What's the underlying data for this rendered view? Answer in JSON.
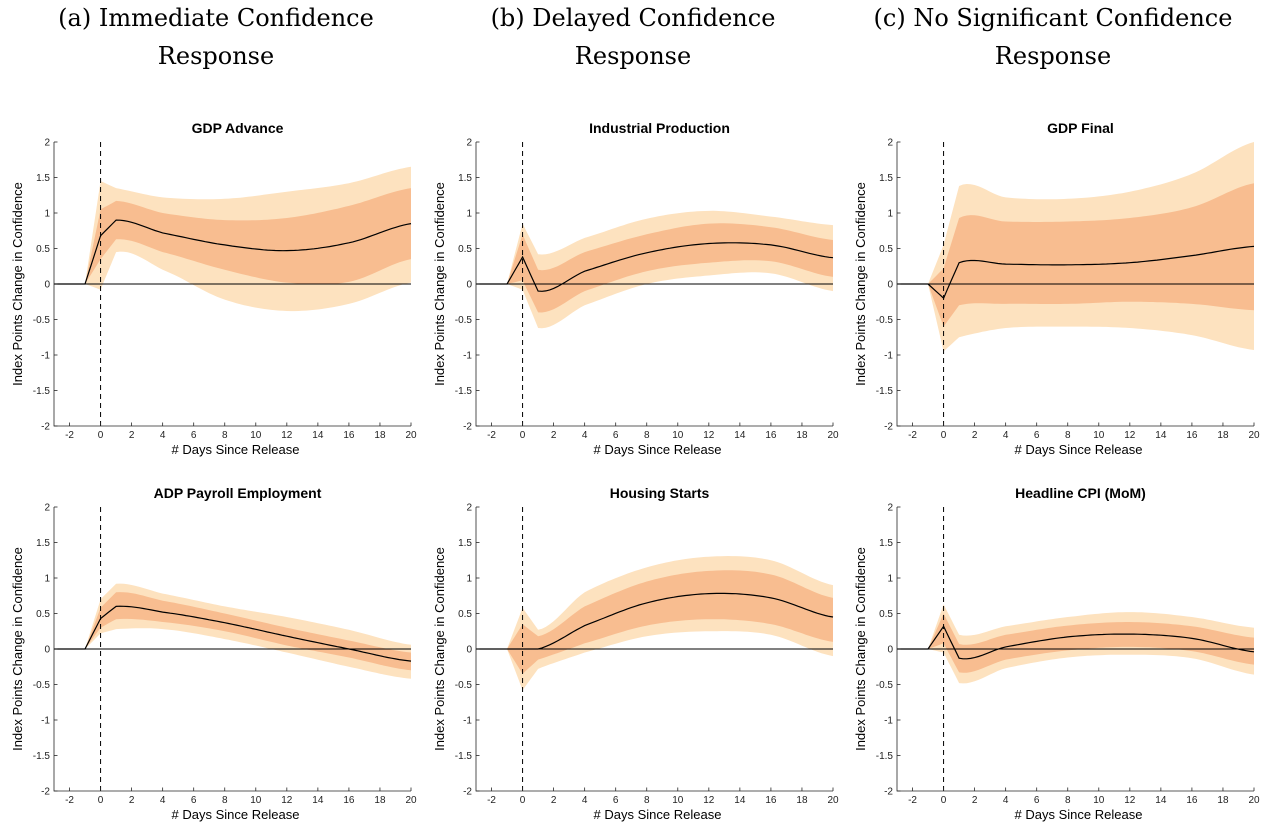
{
  "columns": [
    {
      "line1": "(a) Immediate Confidence",
      "line2": "Response"
    },
    {
      "line1": "(b) Delayed Confidence",
      "line2": "Response"
    },
    {
      "line1": "(c) No Significant Confidence",
      "line2": "Response"
    }
  ],
  "colors": {
    "outer_band": "#fde2bf",
    "inner_band": "#f8bd90",
    "line": "#000000"
  },
  "chart_data": [
    {
      "type": "line",
      "title": "GDP Advance",
      "xlabel": "# Days Since Release",
      "ylabel": "Index Points Change in Confidence",
      "xlim": [
        -3,
        20
      ],
      "ylim": [
        -2,
        2
      ],
      "xticks": [
        -2,
        0,
        2,
        4,
        6,
        8,
        10,
        12,
        14,
        16,
        18,
        20
      ],
      "xtick_labels": [
        "-2",
        "0",
        "2",
        "4",
        "6",
        "8",
        "10",
        "12",
        "14",
        "16",
        "18",
        "20"
      ],
      "yticks": [
        -2,
        -1.5,
        -1,
        -0.5,
        0,
        0.5,
        1,
        1.5,
        2
      ],
      "ytick_labels": [
        "-2",
        "-1.5",
        "-1",
        "-0.5",
        "0",
        "0.5",
        "1",
        "1.5",
        "2"
      ],
      "release_day": 0,
      "x": [
        -3,
        -1,
        0,
        1,
        4,
        8,
        12,
        16,
        20
      ],
      "series": [
        {
          "values": [
            0,
            0,
            0.68,
            0.9,
            0.72,
            0.55,
            0.47,
            0.58,
            0.85
          ]
        }
      ],
      "inner_band": {
        "lower": [
          0,
          0,
          0.35,
          0.63,
          0.45,
          0.2,
          0.02,
          0.03,
          0.35
        ],
        "upper": [
          0,
          0,
          1.05,
          1.17,
          1.0,
          0.9,
          0.93,
          1.1,
          1.35
        ]
      },
      "outer_band": {
        "lower": [
          0,
          0,
          -0.08,
          0.45,
          0.2,
          -0.22,
          -0.38,
          -0.28,
          0.02
        ],
        "upper": [
          0,
          0,
          1.45,
          1.35,
          1.22,
          1.2,
          1.3,
          1.42,
          1.65
        ]
      }
    },
    {
      "type": "line",
      "title": "Industrial Production",
      "xlabel": "# Days Since Release",
      "ylabel": "Index Points Change in Confidence",
      "xlim": [
        -3,
        20
      ],
      "ylim": [
        -2,
        2
      ],
      "xticks": [
        -2,
        0,
        2,
        4,
        6,
        8,
        10,
        12,
        14,
        16,
        18,
        20
      ],
      "xtick_labels": [
        "-2",
        "0",
        "2",
        "4",
        "6",
        "8",
        "10",
        "12",
        "14",
        "16",
        "18",
        "20"
      ],
      "yticks": [
        -2,
        -1.5,
        -1,
        -0.5,
        0,
        0.5,
        1,
        1.5,
        2
      ],
      "ytick_labels": [
        "-2",
        "-1.5",
        "-1",
        "-0.5",
        "0",
        "0.5",
        "1",
        "1.5",
        "2"
      ],
      "release_day": 0,
      "x": [
        -3,
        -1,
        0,
        1,
        4,
        8,
        12,
        16,
        20
      ],
      "series": [
        {
          "values": [
            0,
            0,
            0.38,
            -0.1,
            0.18,
            0.44,
            0.57,
            0.55,
            0.37
          ]
        }
      ],
      "inner_band": {
        "lower": [
          0,
          0,
          0.05,
          -0.4,
          -0.1,
          0.18,
          0.3,
          0.32,
          0.1
        ],
        "upper": [
          0,
          0,
          0.7,
          0.2,
          0.45,
          0.7,
          0.85,
          0.8,
          0.62
        ]
      },
      "outer_band": {
        "lower": [
          0,
          0,
          -0.08,
          -0.62,
          -0.3,
          0.0,
          0.12,
          0.15,
          -0.1
        ],
        "upper": [
          0,
          0,
          0.85,
          0.42,
          0.65,
          0.92,
          1.03,
          0.95,
          0.83
        ]
      }
    },
    {
      "type": "line",
      "title": "GDP Final",
      "xlabel": "# Days Since Release",
      "ylabel": "Index Points Change in Confidence",
      "xlim": [
        -3,
        20
      ],
      "ylim": [
        -2,
        2
      ],
      "xticks": [
        -2,
        0,
        2,
        4,
        6,
        8,
        10,
        12,
        14,
        16,
        18,
        20
      ],
      "xtick_labels": [
        "-2",
        "0",
        "2",
        "4",
        "6",
        "8",
        "10",
        "12",
        "14",
        "16",
        "18",
        "20"
      ],
      "yticks": [
        -2,
        -1.5,
        -1,
        -0.5,
        0,
        0.5,
        1,
        1.5,
        2
      ],
      "ytick_labels": [
        "-2",
        "-1.5",
        "-1",
        "-0.5",
        "0",
        "0.5",
        "1",
        "1.5",
        "2"
      ],
      "release_day": 0,
      "x": [
        -3,
        -1,
        0,
        1,
        4,
        8,
        12,
        16,
        20
      ],
      "series": [
        {
          "values": [
            0,
            0,
            -0.2,
            0.3,
            0.28,
            0.27,
            0.3,
            0.4,
            0.53
          ]
        }
      ],
      "inner_band": {
        "lower": [
          0,
          0,
          -0.6,
          -0.3,
          -0.28,
          -0.28,
          -0.25,
          -0.28,
          -0.37
        ],
        "upper": [
          0,
          0,
          0.22,
          0.93,
          0.88,
          0.88,
          0.93,
          1.08,
          1.42
        ]
      },
      "outer_band": {
        "lower": [
          0,
          0,
          -0.95,
          -0.75,
          -0.62,
          -0.6,
          -0.62,
          -0.72,
          -0.93
        ],
        "upper": [
          0,
          0,
          0.55,
          1.38,
          1.22,
          1.2,
          1.3,
          1.55,
          2.0
        ]
      }
    },
    {
      "type": "line",
      "title": "ADP Payroll Employment",
      "xlabel": "# Days Since Release",
      "ylabel": "Index Points Change in Confidence",
      "xlim": [
        -3,
        20
      ],
      "ylim": [
        -2,
        2
      ],
      "xticks": [
        -2,
        0,
        2,
        4,
        6,
        8,
        10,
        12,
        14,
        16,
        18,
        20
      ],
      "xtick_labels": [
        "-2",
        "0",
        "2",
        "4",
        "6",
        "8",
        "10",
        "12",
        "14",
        "16",
        "18",
        "20"
      ],
      "yticks": [
        -2,
        -1.5,
        -1,
        -0.5,
        0,
        0.5,
        1,
        1.5,
        2
      ],
      "ytick_labels": [
        "-2",
        "-1.5",
        "-1",
        "-0.5",
        "0",
        "0.5",
        "1",
        "1.5",
        "2"
      ],
      "release_day": 0,
      "x": [
        -3,
        -1,
        0,
        1,
        4,
        8,
        12,
        16,
        20
      ],
      "series": [
        {
          "values": [
            0,
            0,
            0.43,
            0.6,
            0.52,
            0.37,
            0.18,
            0.0,
            -0.17
          ]
        }
      ],
      "inner_band": {
        "lower": [
          0,
          0,
          0.3,
          0.42,
          0.38,
          0.25,
          0.05,
          -0.12,
          -0.3
        ],
        "upper": [
          0,
          0,
          0.58,
          0.8,
          0.68,
          0.5,
          0.3,
          0.12,
          -0.05
        ]
      },
      "outer_band": {
        "lower": [
          0,
          0,
          0.22,
          0.28,
          0.28,
          0.14,
          -0.05,
          -0.25,
          -0.42
        ],
        "upper": [
          0,
          0,
          0.7,
          0.92,
          0.78,
          0.6,
          0.45,
          0.27,
          0.06
        ]
      }
    },
    {
      "type": "line",
      "title": "Housing Starts",
      "xlabel": "# Days Since Release",
      "ylabel": "Index Points Change in Confidence",
      "xlim": [
        -3,
        20
      ],
      "ylim": [
        -2,
        2
      ],
      "xticks": [
        -2,
        0,
        2,
        4,
        6,
        8,
        10,
        12,
        14,
        16,
        18,
        20
      ],
      "xtick_labels": [
        "-2",
        "0",
        "2",
        "4",
        "6",
        "8",
        "10",
        "12",
        "14",
        "16",
        "18",
        "20"
      ],
      "yticks": [
        -2,
        -1.5,
        -1,
        -0.5,
        0,
        0.5,
        1,
        1.5,
        2
      ],
      "ytick_labels": [
        "-2",
        "-1.5",
        "-1",
        "-0.5",
        "0",
        "0.5",
        "1",
        "1.5",
        "2"
      ],
      "release_day": 0,
      "x": [
        -3,
        -1,
        0,
        1,
        4,
        8,
        12,
        16,
        20
      ],
      "series": [
        {
          "values": [
            0,
            0,
            0.0,
            0.0,
            0.33,
            0.65,
            0.78,
            0.72,
            0.45
          ]
        }
      ],
      "inner_band": {
        "lower": [
          0,
          0,
          -0.35,
          -0.15,
          0.08,
          0.33,
          0.42,
          0.35,
          0.1
        ],
        "upper": [
          0,
          0,
          0.35,
          0.18,
          0.6,
          0.95,
          1.1,
          1.05,
          0.72
        ]
      },
      "outer_band": {
        "lower": [
          0,
          0,
          -0.58,
          -0.28,
          -0.05,
          0.18,
          0.25,
          0.2,
          -0.1
        ],
        "upper": [
          0,
          0,
          0.58,
          0.27,
          0.8,
          1.15,
          1.3,
          1.25,
          0.9
        ]
      }
    },
    {
      "type": "line",
      "title": "Headline CPI (MoM)",
      "xlabel": "# Days Since Release",
      "ylabel": "Index Points Change in Confidence",
      "xlim": [
        -3,
        20
      ],
      "ylim": [
        -2,
        2
      ],
      "xticks": [
        -2,
        0,
        2,
        4,
        6,
        8,
        10,
        12,
        14,
        16,
        18,
        20
      ],
      "xtick_labels": [
        "-2",
        "0",
        "2",
        "4",
        "6",
        "8",
        "10",
        "12",
        "14",
        "16",
        "18",
        "20"
      ],
      "yticks": [
        -2,
        -1.5,
        -1,
        -0.5,
        0,
        0.5,
        1,
        1.5,
        2
      ],
      "ytick_labels": [
        "-2",
        "-1.5",
        "-1",
        "-0.5",
        "0",
        "0.5",
        "1",
        "1.5",
        "2"
      ],
      "release_day": 0,
      "x": [
        -3,
        -1,
        0,
        1,
        4,
        8,
        12,
        16,
        20
      ],
      "series": [
        {
          "values": [
            0,
            0,
            0.32,
            -0.13,
            0.03,
            0.17,
            0.21,
            0.15,
            -0.04
          ]
        }
      ],
      "inner_band": {
        "lower": [
          0,
          0,
          0.08,
          -0.33,
          -0.15,
          -0.02,
          0.03,
          -0.03,
          -0.22
        ],
        "upper": [
          0,
          0,
          0.5,
          0.07,
          0.2,
          0.33,
          0.38,
          0.32,
          0.16
        ]
      },
      "outer_band": {
        "lower": [
          0,
          0,
          -0.05,
          -0.48,
          -0.27,
          -0.12,
          -0.08,
          -0.13,
          -0.36
        ],
        "upper": [
          0,
          0,
          0.63,
          0.2,
          0.32,
          0.45,
          0.52,
          0.45,
          0.3
        ]
      }
    }
  ]
}
